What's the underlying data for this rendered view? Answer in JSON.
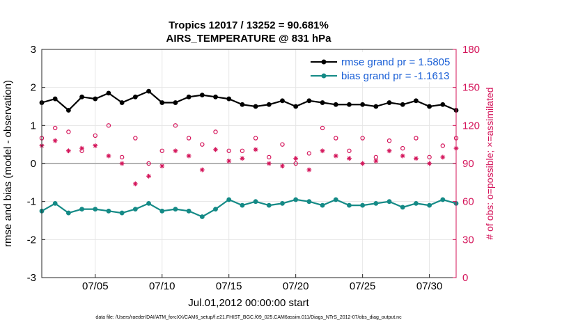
{
  "chart_data": {
    "type": "line",
    "title": "Tropics 12017 / 13252 = 90.681%",
    "subtitle": "AIRS_TEMPERATURE @ 831 hPa",
    "xlabel": "Jul.01,2012 00:00:00 start",
    "ylabel": "rmse and bias (model - observation)",
    "ylabel_right": "# of obs: o=possible; ×=assimilated",
    "xlim": [
      1,
      32
    ],
    "ylim": [
      -3,
      3
    ],
    "ylim_right": [
      0,
      180
    ],
    "x_ticks": [
      5,
      10,
      15,
      20,
      25,
      30
    ],
    "x_tick_labels": [
      "07/05",
      "07/10",
      "07/15",
      "07/20",
      "07/25",
      "07/30"
    ],
    "y_ticks": [
      -3,
      -2,
      -1,
      0,
      1,
      2,
      3
    ],
    "y_tick_labels": [
      "-3",
      "-2",
      "-1",
      "0",
      "1",
      "2",
      "3"
    ],
    "y_right_ticks": [
      0,
      30,
      60,
      90,
      120,
      150,
      180
    ],
    "y_right_tick_labels": [
      "0",
      "30",
      "60",
      "90",
      "120",
      "150",
      "180"
    ],
    "grid": true,
    "legend_position": "top-right",
    "legend": [
      "rmse grand pr = 1.5805",
      "bias grand pr = -1.1613"
    ],
    "colors": {
      "rmse": "#000000",
      "bias": "#148a86",
      "obs": "#d4145a",
      "zero_line": "#b3b3b3",
      "legend_text": "#1a5fd6"
    },
    "rmse_points": [
      [
        1,
        1.6
      ],
      [
        2,
        1.7
      ],
      [
        3,
        1.4
      ],
      [
        4,
        1.75
      ],
      [
        5,
        1.7
      ],
      [
        6,
        1.85
      ],
      [
        7,
        1.6
      ],
      [
        8,
        1.75
      ],
      [
        9,
        1.9
      ],
      [
        10,
        1.6
      ],
      [
        11,
        1.6
      ],
      [
        12,
        1.75
      ],
      [
        13,
        1.8
      ],
      [
        14,
        1.75
      ],
      [
        15,
        1.7
      ],
      [
        16,
        1.55
      ],
      [
        17,
        1.5
      ],
      [
        18,
        1.55
      ],
      [
        19,
        1.65
      ],
      [
        20,
        1.5
      ],
      [
        21,
        1.65
      ],
      [
        22,
        1.6
      ],
      [
        23,
        1.55
      ],
      [
        24,
        1.55
      ],
      [
        25,
        1.55
      ],
      [
        26,
        1.5
      ],
      [
        27,
        1.6
      ],
      [
        28,
        1.55
      ],
      [
        29,
        1.65
      ],
      [
        30,
        1.5
      ],
      [
        31,
        1.55
      ],
      [
        32,
        1.4
      ]
    ],
    "bias_points": [
      [
        1,
        -1.25
      ],
      [
        2,
        -1.05
      ],
      [
        3,
        -1.3
      ],
      [
        4,
        -1.2
      ],
      [
        5,
        -1.2
      ],
      [
        6,
        -1.25
      ],
      [
        7,
        -1.3
      ],
      [
        8,
        -1.2
      ],
      [
        9,
        -1.05
      ],
      [
        10,
        -1.25
      ],
      [
        11,
        -1.2
      ],
      [
        12,
        -1.25
      ],
      [
        13,
        -1.4
      ],
      [
        14,
        -1.2
      ],
      [
        15,
        -0.95
      ],
      [
        16,
        -1.1
      ],
      [
        17,
        -1.0
      ],
      [
        18,
        -1.1
      ],
      [
        19,
        -1.05
      ],
      [
        20,
        -0.95
      ],
      [
        21,
        -1.0
      ],
      [
        22,
        -1.1
      ],
      [
        23,
        -0.95
      ],
      [
        24,
        -1.1
      ],
      [
        25,
        -1.1
      ],
      [
        26,
        -1.05
      ],
      [
        27,
        -1.0
      ],
      [
        28,
        -1.15
      ],
      [
        29,
        -1.05
      ],
      [
        30,
        -1.1
      ],
      [
        31,
        -0.95
      ],
      [
        32,
        -1.05
      ]
    ],
    "obs_possible_points": [
      [
        1,
        110
      ],
      [
        2,
        118
      ],
      [
        3,
        115
      ],
      [
        4,
        100
      ],
      [
        5,
        112
      ],
      [
        6,
        120
      ],
      [
        7,
        95
      ],
      [
        8,
        110
      ],
      [
        9,
        90
      ],
      [
        10,
        100
      ],
      [
        11,
        120
      ],
      [
        12,
        110
      ],
      [
        13,
        105
      ],
      [
        14,
        115
      ],
      [
        15,
        100
      ],
      [
        16,
        100
      ],
      [
        17,
        110
      ],
      [
        18,
        95
      ],
      [
        19,
        105
      ],
      [
        20,
        90
      ],
      [
        21,
        98
      ],
      [
        22,
        118
      ],
      [
        23,
        110
      ],
      [
        24,
        100
      ],
      [
        25,
        110
      ],
      [
        26,
        95
      ],
      [
        27,
        108
      ],
      [
        28,
        102
      ],
      [
        29,
        110
      ],
      [
        30,
        95
      ],
      [
        31,
        104
      ],
      [
        32,
        110
      ]
    ],
    "obs_assimilated_points": [
      [
        1,
        104
      ],
      [
        2,
        108
      ],
      [
        3,
        100
      ],
      [
        4,
        102
      ],
      [
        5,
        104
      ],
      [
        6,
        96
      ],
      [
        7,
        90
      ],
      [
        8,
        74
      ],
      [
        9,
        80
      ],
      [
        10,
        88
      ],
      [
        11,
        100
      ],
      [
        12,
        96
      ],
      [
        13,
        85
      ],
      [
        14,
        101
      ],
      [
        15,
        92
      ],
      [
        16,
        94
      ],
      [
        17,
        101
      ],
      [
        18,
        90
      ],
      [
        19,
        88
      ],
      [
        20,
        94
      ],
      [
        21,
        85
      ],
      [
        22,
        100
      ],
      [
        23,
        96
      ],
      [
        24,
        94
      ],
      [
        25,
        90
      ],
      [
        26,
        92
      ],
      [
        27,
        100
      ],
      [
        28,
        96
      ],
      [
        29,
        94
      ],
      [
        30,
        90
      ],
      [
        31,
        95
      ],
      [
        32,
        102
      ]
    ]
  },
  "footnote": "data file: /Users/raeder/DAI/ATM_forcXX/CAM6_setup/f.e21.FHIST_BGC.f09_025.CAM6assim.011/Diags_NTrS_2012-07/obs_diag_output.nc"
}
